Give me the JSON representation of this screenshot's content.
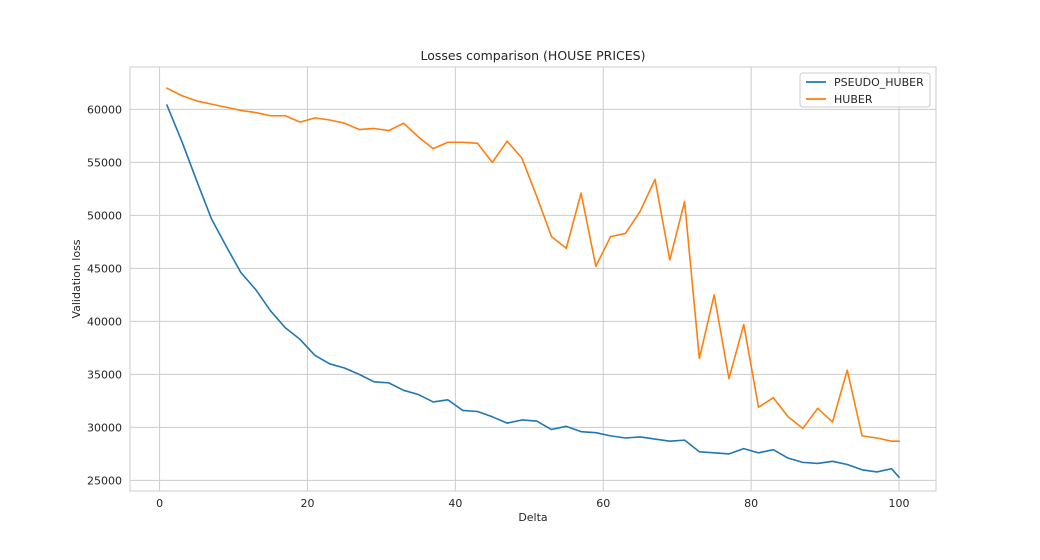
{
  "chart_data": {
    "type": "line",
    "title": "Losses comparison (HOUSE PRICES)",
    "xlabel": "Delta",
    "ylabel": "Validation loss",
    "xlim": [
      -4,
      105
    ],
    "ylim": [
      24000,
      64000
    ],
    "xticks": [
      0,
      20,
      40,
      60,
      80,
      100
    ],
    "yticks": [
      25000,
      30000,
      35000,
      40000,
      45000,
      50000,
      55000,
      60000
    ],
    "grid": true,
    "legend_position": "top-right",
    "x": [
      1,
      3,
      5,
      7,
      9,
      11,
      13,
      15,
      17,
      19,
      21,
      23,
      25,
      27,
      29,
      31,
      33,
      35,
      37,
      39,
      41,
      43,
      45,
      47,
      49,
      51,
      53,
      55,
      57,
      59,
      61,
      63,
      65,
      67,
      69,
      71,
      73,
      75,
      77,
      79,
      81,
      83,
      85,
      87,
      89,
      91,
      93,
      95,
      97,
      99,
      100
    ],
    "series": [
      {
        "name": "PSEUDO_HUBER",
        "color": "#1f77b4",
        "values": [
          60400,
          57000,
          53300,
          49700,
          47100,
          44600,
          43000,
          41000,
          39400,
          38300,
          36800,
          36000,
          35600,
          35000,
          34300,
          34200,
          33500,
          33100,
          32400,
          32600,
          31600,
          31500,
          31000,
          30400,
          30700,
          30600,
          29800,
          30100,
          29600,
          29500,
          29200,
          29000,
          29100,
          28900,
          28700,
          28800,
          27700,
          27600,
          27500,
          28000,
          27600,
          27900,
          27100,
          26700,
          26600,
          26800,
          26500,
          26000,
          25800,
          26100,
          25300
        ]
      },
      {
        "name": "HUBER",
        "color": "#ff7f0e",
        "values": [
          62000,
          61300,
          60800,
          60500,
          60200,
          59900,
          59700,
          59400,
          59400,
          58800,
          59200,
          59000,
          58700,
          58100,
          58200,
          58000,
          58700,
          57400,
          56300,
          56900,
          56900,
          56800,
          55000,
          57000,
          55400,
          51800,
          48000,
          46900,
          52100,
          45200,
          48000,
          48300,
          50400,
          53400,
          45800,
          51300,
          36500,
          42500,
          34600,
          39700,
          31900,
          32800,
          31000,
          29900,
          31800,
          30500,
          35400,
          29200,
          29000,
          28700,
          28700
        ]
      }
    ]
  }
}
